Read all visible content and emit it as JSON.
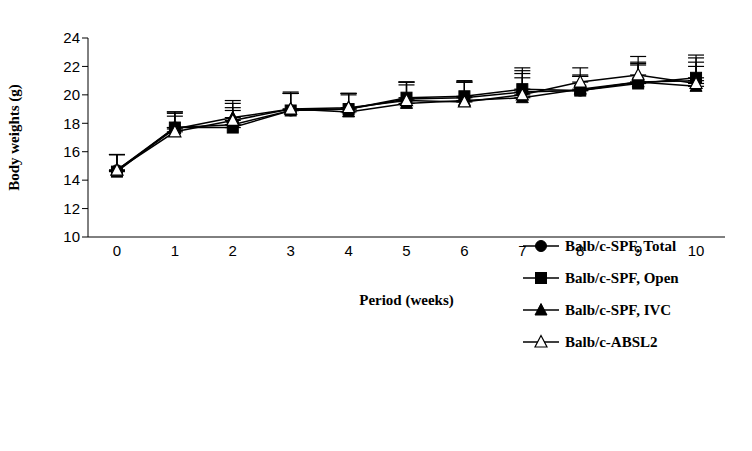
{
  "chart_data": {
    "type": "line",
    "x_label": "Period (weeks)",
    "y_label": "Body weights (g)",
    "x": [
      0,
      1,
      2,
      3,
      4,
      5,
      6,
      7,
      8,
      9,
      10
    ],
    "xlim": [
      -0.5,
      10.5
    ],
    "xticks": [
      0,
      1,
      2,
      3,
      4,
      5,
      6,
      7,
      8,
      9,
      10
    ],
    "ylim": [
      10,
      24
    ],
    "yticks": [
      10,
      12,
      14,
      16,
      18,
      20,
      22,
      24
    ],
    "grid": false,
    "legend": "lower right",
    "series": [
      {
        "name": "Balb/c-SPF, Total",
        "color": "#000000",
        "marker": "circle",
        "values": [
          14.7,
          17.7,
          17.9,
          18.9,
          19.0,
          19.7,
          19.8,
          20.2,
          20.3,
          20.9,
          21.0
        ],
        "errors": [
          1.1,
          1.1,
          1.2,
          1.2,
          1.1,
          1.2,
          1.1,
          1.5,
          1.0,
          1.3,
          1.6
        ]
      },
      {
        "name": "Balb/c-SPF, Open",
        "color": "#000000",
        "marker": "square",
        "values": [
          14.6,
          17.7,
          17.7,
          18.9,
          19.0,
          19.8,
          19.9,
          20.4,
          20.3,
          20.8,
          21.2
        ],
        "errors": [
          1.2,
          1.1,
          1.2,
          1.2,
          1.1,
          1.1,
          1.1,
          1.5,
          1.0,
          1.3,
          1.6
        ]
      },
      {
        "name": "Balb/c-SPF, IVC",
        "color": "#000000",
        "marker": "triangle",
        "values": [
          14.7,
          17.6,
          18.4,
          19.0,
          18.8,
          19.4,
          19.6,
          19.8,
          20.4,
          20.9,
          20.6
        ],
        "errors": [
          1.1,
          1.1,
          1.2,
          1.2,
          1.2,
          1.3,
          1.3,
          1.4,
          1.0,
          1.4,
          1.4
        ]
      },
      {
        "name": "Balb/c-ABSL2",
        "color": "#000000",
        "marker": "triangle-open",
        "values": [
          14.7,
          17.4,
          18.2,
          19.0,
          19.1,
          19.6,
          19.5,
          20.0,
          20.9,
          21.4,
          20.8
        ],
        "errors": [
          1.1,
          1.1,
          1.2,
          1.1,
          1.0,
          1.3,
          1.4,
          1.5,
          1.0,
          1.3,
          1.5
        ]
      }
    ]
  }
}
